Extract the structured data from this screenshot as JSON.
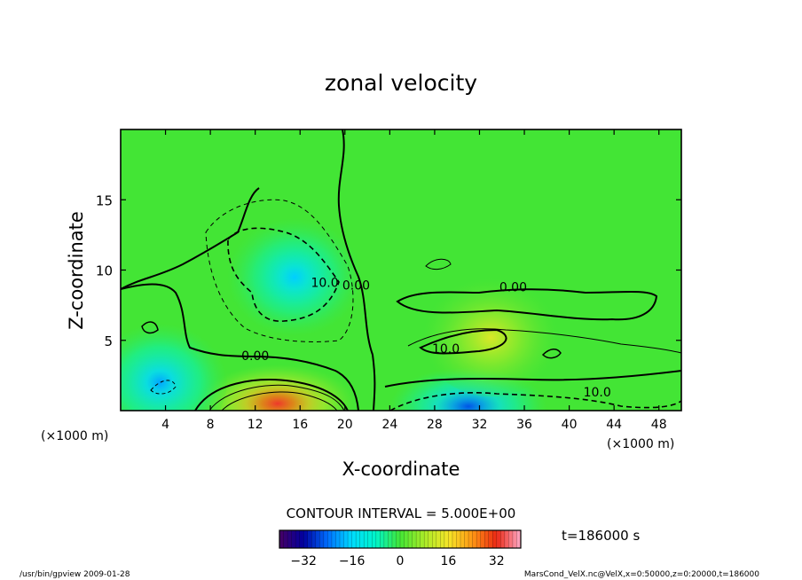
{
  "chart_data": {
    "type": "heatmap",
    "title": "zonal velocity",
    "xlabel": "X-coordinate",
    "ylabel": "Z-coordinate",
    "x_unit_left": "(×1000 m)",
    "x_unit_right": "(×1000 m)",
    "xlim": [
      0,
      50
    ],
    "ylim": [
      0,
      20
    ],
    "x_ticks": [
      4,
      8,
      12,
      16,
      20,
      24,
      28,
      32,
      36,
      40,
      44,
      48
    ],
    "y_ticks": [
      5,
      10,
      15
    ],
    "contour_interval_text": "CONTOUR INTERVAL = 5.000E+00",
    "time_text": "t=186000 s",
    "colorbar": {
      "min": -40,
      "max": 40,
      "ticks": [
        -32,
        -16,
        0,
        16,
        32
      ]
    },
    "contour_labels": [
      {
        "text": "10.0",
        "x": 18.2,
        "y": 8.8
      },
      {
        "text": "0.00",
        "x": 21.0,
        "y": 8.6
      },
      {
        "text": "0.00",
        "x": 12.0,
        "y": 3.6
      },
      {
        "text": "0.00",
        "x": 35.0,
        "y": 8.5
      },
      {
        "text": "10.0",
        "x": 29.0,
        "y": 4.1
      },
      {
        "text": "10.0",
        "x": 42.5,
        "y": 1.0
      }
    ],
    "features": [
      {
        "kind": "jet",
        "sign": "positive",
        "center_x": 14.0,
        "center_z": 0.5,
        "peak": 33
      },
      {
        "kind": "jet",
        "sign": "negative",
        "center_x": 15.5,
        "center_z": 9.5,
        "peak": -17
      },
      {
        "kind": "jet",
        "sign": "negative",
        "center_x": 31.0,
        "center_z": 0.3,
        "peak": -26
      },
      {
        "kind": "jet",
        "sign": "negative",
        "center_x": 3.5,
        "center_z": 2.0,
        "peak": -20
      },
      {
        "kind": "jet",
        "sign": "positive",
        "center_x": 33.0,
        "center_z": 5.2,
        "peak": 13
      }
    ]
  },
  "footer": {
    "left": "/usr/bin/gpview  2009-01-28",
    "right": "MarsCond_VelX.nc@VelX,x=0:50000,z=0:20000,t=186000"
  }
}
